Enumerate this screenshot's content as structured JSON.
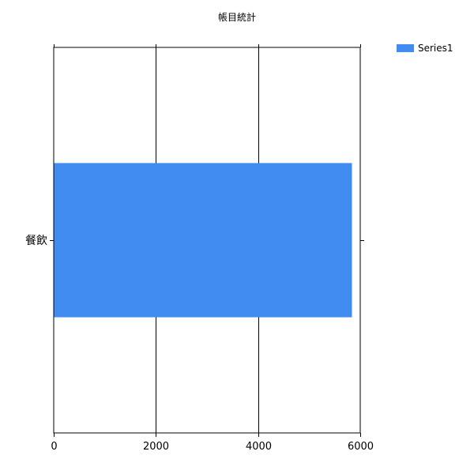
{
  "chart_data": {
    "type": "bar",
    "orientation": "horizontal",
    "title": "帳目統計",
    "categories": [
      "餐飲"
    ],
    "series": [
      {
        "name": "Series1",
        "values": [
          5830
        ],
        "color": "#418CF0"
      }
    ],
    "xlabel": "",
    "ylabel": "",
    "xlim": [
      0,
      6000
    ],
    "x_ticks": [
      0,
      2000,
      4000,
      6000
    ],
    "x_tick_labels": [
      "0",
      "2000",
      "4000",
      "6000"
    ],
    "grid": "vertical lines at major ticks",
    "legend": "top-right",
    "colors": {
      "axis": "#000000",
      "grid": "#000000",
      "background": "#FFFFFF"
    }
  }
}
